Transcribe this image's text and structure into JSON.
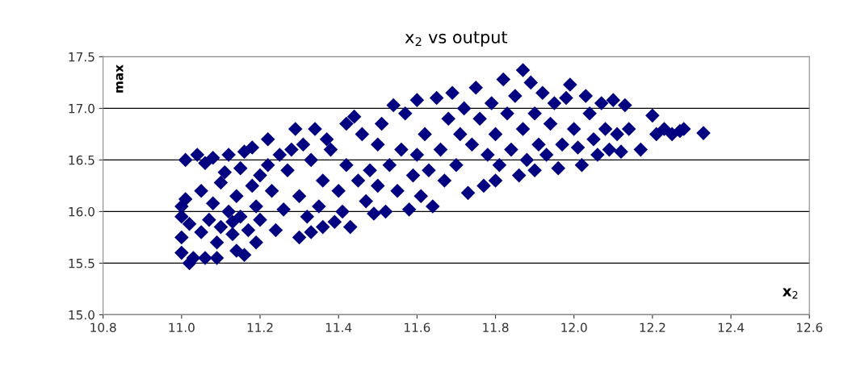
{
  "chart_data": {
    "type": "scatter",
    "title": "x$_{2}$ vs output",
    "xlabel": "x$_{2}$",
    "ylabel": "max",
    "x": [
      11.0,
      11.0,
      11.0,
      11.0,
      11.01,
      11.01,
      11.02,
      11.02,
      11.03,
      11.04,
      11.05,
      11.05,
      11.06,
      11.06,
      11.07,
      11.08,
      11.08,
      11.09,
      11.09,
      11.1,
      11.1,
      11.11,
      11.12,
      11.12,
      11.13,
      11.13,
      11.14,
      11.14,
      11.15,
      11.15,
      11.16,
      11.16,
      11.17,
      11.18,
      11.18,
      11.19,
      11.19,
      11.2,
      11.2,
      11.22,
      11.22,
      11.23,
      11.24,
      11.25,
      11.26,
      11.27,
      11.28,
      11.29,
      11.3,
      11.3,
      11.31,
      11.32,
      11.33,
      11.33,
      11.34,
      11.35,
      11.36,
      11.36,
      11.37,
      11.38,
      11.39,
      11.4,
      11.41,
      11.42,
      11.42,
      11.43,
      11.44,
      11.45,
      11.46,
      11.47,
      11.48,
      11.49,
      11.5,
      11.5,
      11.51,
      11.52,
      11.53,
      11.54,
      11.55,
      11.56,
      11.57,
      11.58,
      11.59,
      11.6,
      11.6,
      11.61,
      11.62,
      11.63,
      11.64,
      11.65,
      11.66,
      11.67,
      11.68,
      11.69,
      11.7,
      11.71,
      11.72,
      11.73,
      11.74,
      11.75,
      11.76,
      11.77,
      11.78,
      11.79,
      11.8,
      11.8,
      11.81,
      11.82,
      11.83,
      11.84,
      11.85,
      11.86,
      11.87,
      11.87,
      11.88,
      11.89,
      11.9,
      11.9,
      11.91,
      11.92,
      11.93,
      11.94,
      11.95,
      11.96,
      11.97,
      11.98,
      11.99,
      12.0,
      12.01,
      12.02,
      12.03,
      12.04,
      12.05,
      12.06,
      12.07,
      12.08,
      12.09,
      12.1,
      12.11,
      12.12,
      12.13,
      12.14,
      12.17,
      12.2,
      12.21,
      12.23,
      12.25,
      12.27,
      12.28,
      12.33
    ],
    "series": [
      {
        "color": "#000080",
        "values": [
          15.6,
          15.75,
          15.95,
          16.05,
          16.5,
          16.12,
          15.5,
          15.88,
          15.55,
          16.55,
          16.2,
          15.8,
          16.47,
          15.55,
          15.92,
          16.52,
          16.08,
          15.55,
          15.7,
          16.28,
          15.85,
          16.38,
          16.55,
          16.0,
          15.78,
          15.9,
          16.15,
          15.62,
          16.42,
          15.95,
          16.58,
          15.58,
          15.82,
          16.62,
          16.25,
          16.05,
          15.7,
          16.35,
          15.92,
          16.7,
          16.45,
          16.2,
          15.82,
          16.55,
          16.02,
          16.4,
          16.6,
          16.8,
          15.75,
          16.15,
          16.65,
          15.95,
          16.5,
          15.8,
          16.8,
          16.05,
          16.3,
          15.85,
          16.7,
          16.6,
          15.9,
          16.2,
          16.0,
          16.85,
          16.45,
          15.85,
          16.92,
          16.3,
          16.75,
          16.1,
          16.4,
          15.98,
          16.65,
          16.25,
          16.85,
          16.0,
          16.45,
          17.03,
          16.2,
          16.6,
          16.95,
          16.02,
          16.35,
          17.08,
          16.55,
          16.15,
          16.75,
          16.4,
          16.05,
          17.1,
          16.6,
          16.3,
          16.9,
          17.15,
          16.45,
          16.75,
          17.0,
          16.18,
          16.65,
          17.2,
          16.9,
          16.25,
          16.55,
          17.05,
          16.75,
          16.3,
          16.45,
          17.28,
          16.95,
          16.6,
          17.12,
          16.35,
          17.37,
          16.8,
          16.5,
          17.25,
          16.95,
          16.4,
          16.65,
          17.15,
          16.55,
          16.85,
          17.05,
          16.42,
          16.65,
          17.1,
          17.23,
          16.8,
          16.62,
          16.45,
          17.12,
          16.95,
          16.7,
          16.55,
          17.05,
          16.8,
          16.6,
          17.08,
          16.75,
          16.58,
          17.03,
          16.8,
          16.6,
          16.93,
          16.75,
          16.8,
          16.75,
          16.78,
          16.8,
          16.76
        ]
      }
    ],
    "xlim": [
      10.8,
      12.6
    ],
    "xticks": [
      10.8,
      {
        "value": 11,
        "label": "11.0"
      },
      11.2,
      11.4,
      11.6,
      11.8,
      {
        "value": 12,
        "label": "12.0"
      },
      12.2,
      12.4,
      12.6
    ],
    "ylim": [
      15.0,
      17.5
    ],
    "yticks": [
      {
        "value": 15,
        "label": "15.0"
      },
      15.5,
      {
        "value": 16,
        "label": "16.0"
      },
      16.5,
      {
        "value": 17,
        "label": "17.0"
      },
      17.5
    ],
    "grid": "y",
    "marker": "diamond",
    "legend": false
  }
}
